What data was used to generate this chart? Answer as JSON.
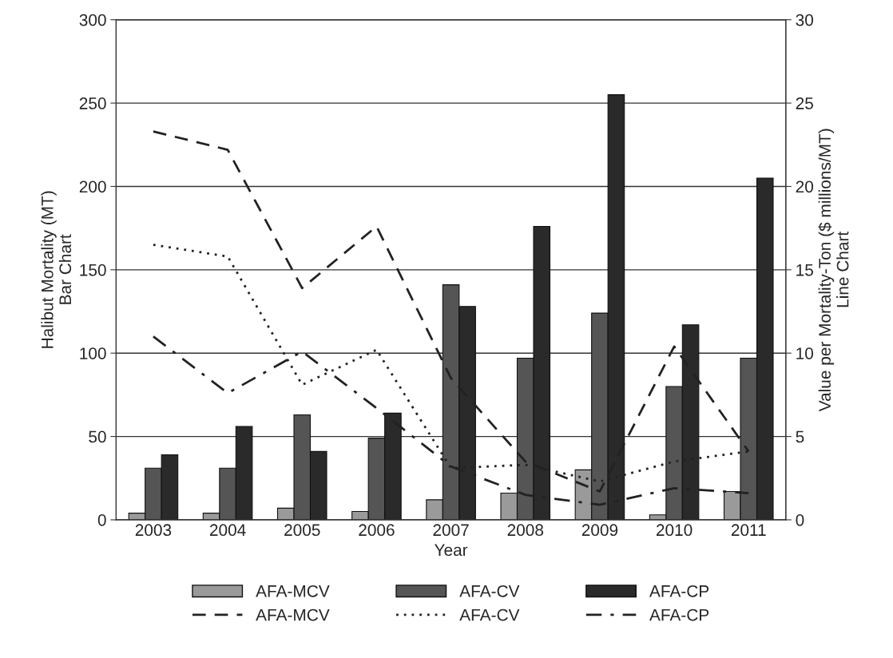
{
  "chart_data": {
    "type": "bar",
    "xlabel": "Year",
    "ylabel": "Halibut Mortality (MT)\nBar Chart",
    "y2label": "Value per Mortality-Ton ($ millions/MT)\nLine Chart",
    "categories": [
      "2003",
      "2004",
      "2005",
      "2006",
      "2007",
      "2008",
      "2009",
      "2010",
      "2011"
    ],
    "series": [
      {
        "name": "AFA-MCV",
        "color": "#9a9a9a",
        "values": [
          4,
          4,
          7,
          5,
          12,
          16,
          30,
          3,
          17
        ]
      },
      {
        "name": "AFA-CV",
        "color": "#555555",
        "values": [
          31,
          31,
          63,
          49,
          141,
          97,
          124,
          80,
          97
        ]
      },
      {
        "name": "AFA-CP",
        "color": "#2a2a2a",
        "values": [
          39,
          56,
          41,
          64,
          128,
          176,
          255,
          117,
          205
        ]
      },
      {
        "name": "AFA-MCV",
        "type": "line",
        "axis": "y2",
        "line_style": "dashed",
        "color": "#222222",
        "values": [
          23.3,
          22.2,
          13.9,
          17.6,
          8.5,
          3.5,
          1.7,
          10.4,
          4.1
        ]
      },
      {
        "name": "AFA-CV",
        "type": "line",
        "axis": "y2",
        "line_style": "dotted",
        "color": "#222222",
        "values": [
          16.5,
          15.8,
          8.1,
          10.2,
          3.1,
          3.3,
          2.3,
          3.5,
          4.1
        ]
      },
      {
        "name": "AFA-CP",
        "type": "line",
        "axis": "y2",
        "line_style": "dashdot",
        "color": "#222222",
        "values": [
          11.0,
          7.6,
          10.1,
          6.7,
          3.2,
          1.5,
          0.9,
          1.9,
          1.6
        ]
      }
    ],
    "ylim": [
      0,
      300
    ],
    "yticks": [
      0,
      50,
      100,
      150,
      200,
      250,
      300
    ],
    "y2lim": [
      0,
      30
    ],
    "y2ticks": [
      0,
      5,
      10,
      15,
      20,
      25,
      30
    ],
    "grid": "y",
    "legend": "bottom",
    "marker": "none"
  }
}
